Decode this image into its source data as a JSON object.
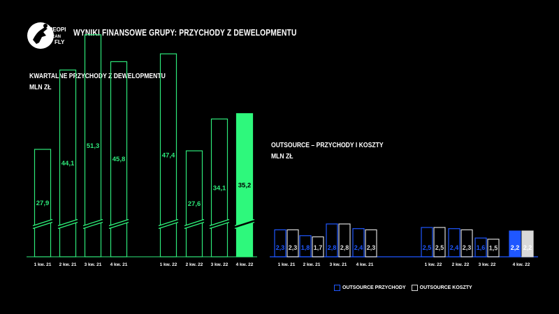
{
  "header": {
    "logo_text": [
      "PEOPLE",
      "CAN",
      "FLY"
    ],
    "title": "WYNIKI FINANSOWE GRUPY: PRZYCHODY Z DEWELOPMENTU"
  },
  "colors": {
    "background": "#000000",
    "green": "#2ee87a",
    "green_fill": "#2ef87c",
    "blue": "#1f57ff",
    "grey": "#d9d9d9"
  },
  "chart_data": [
    {
      "type": "bar",
      "title": "KWARTALNE PRZYCHODY Z DEWELOPMENTU",
      "subtitle": "MLN ZŁ",
      "categories": [
        "1 kw. 21",
        "2 kw. 21",
        "3 kw. 21",
        "4 kw. 21",
        "1 kw. 22",
        "2 kw. 22",
        "3 kw. 22",
        "4 kw. 22"
      ],
      "series": [
        {
          "values": [
            27.9,
            44.1,
            51.3,
            45.8,
            47.4,
            27.6,
            34.1,
            35.2
          ]
        }
      ],
      "data_labels": [
        "27,9",
        "44,1",
        "51,3",
        "45,8",
        "47,4",
        "27,6",
        "34,1",
        "35,2"
      ],
      "highlighted_category": "4 kw. 22",
      "axis_break": true,
      "grid": false
    },
    {
      "type": "bar",
      "title": "OUTSOURCE – PRZYCHODY I KOSZTY",
      "subtitle": "MLN ZŁ",
      "categories": [
        "1 kw. 21",
        "2 kw. 21",
        "3 kw. 21",
        "4 kw. 21",
        "1 kw. 22",
        "2 kw. 22",
        "3 kw. 22",
        "4 kw. 22"
      ],
      "series": [
        {
          "name": "OUTSOURCE PRZYCHODY",
          "values": [
            2.3,
            1.8,
            2.8,
            2.4,
            2.5,
            2.4,
            1.6,
            2.2
          ],
          "labels": [
            "2,3",
            "1,8",
            "2,8",
            "2,4",
            "2,5",
            "2,4",
            "1,6",
            "2,2"
          ]
        },
        {
          "name": "OUTSOURCE KOSZTY",
          "values": [
            2.3,
            1.7,
            2.8,
            2.3,
            2.5,
            2.3,
            1.5,
            2.2
          ],
          "labels": [
            "2,3",
            "1,7",
            "2,8",
            "2,3",
            "2,5",
            "2,3",
            "1,5",
            "2,2"
          ]
        }
      ],
      "highlighted_category": "4 kw. 22",
      "legend_position": "bottom",
      "grid": false
    }
  ]
}
